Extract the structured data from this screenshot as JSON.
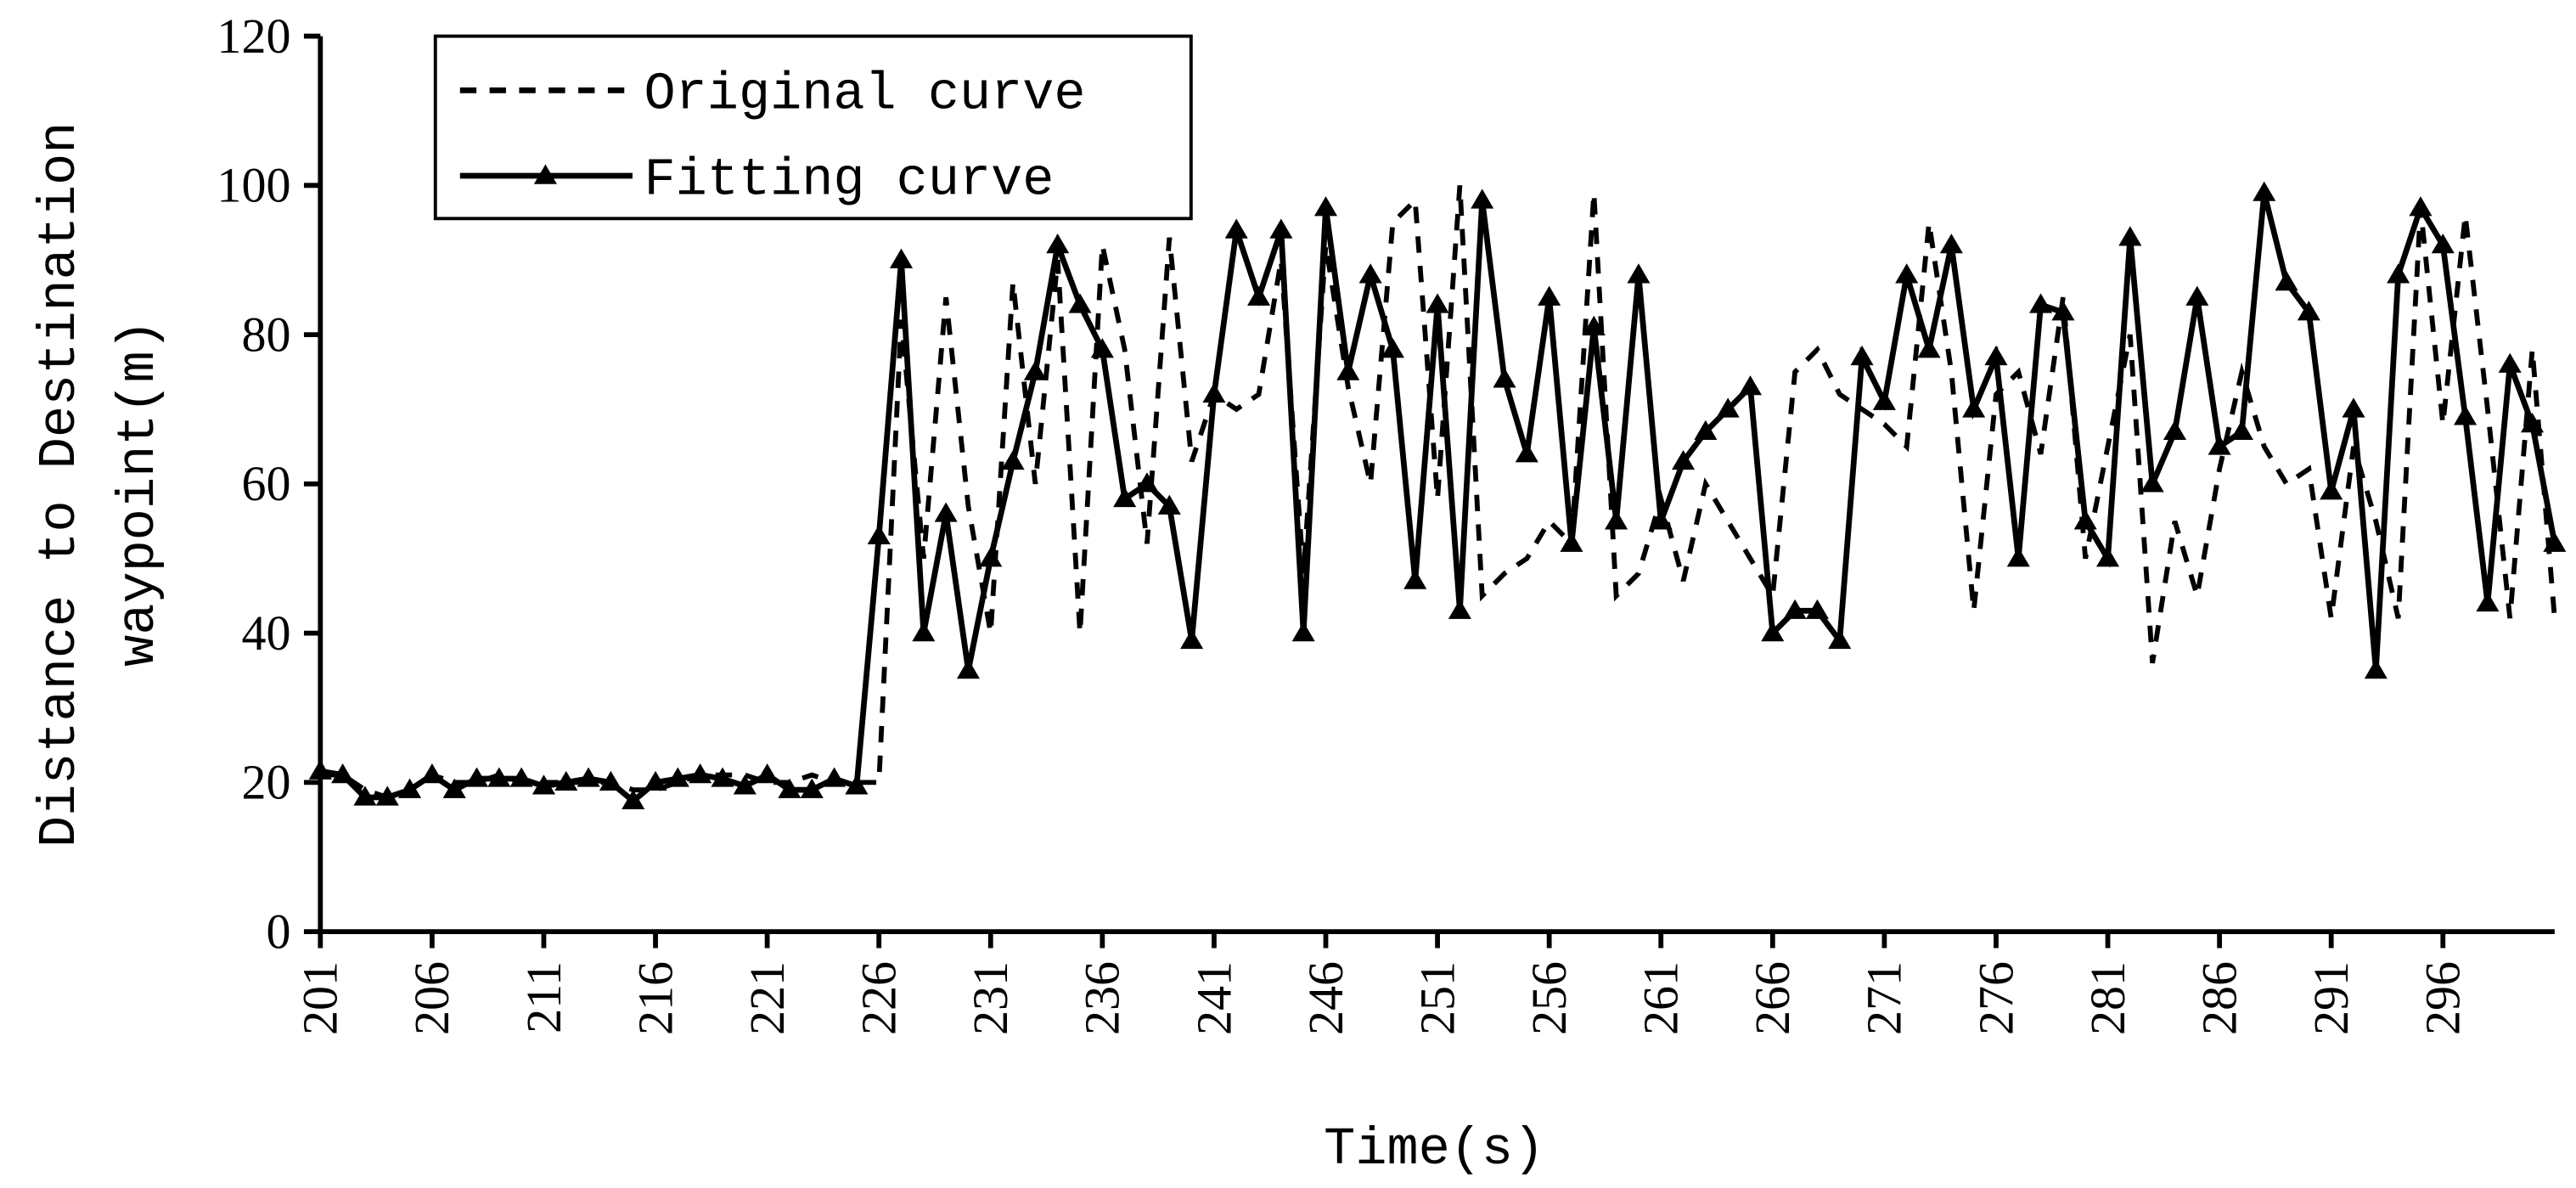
{
  "chart_data": {
    "type": "line",
    "xlabel": "Time(s)",
    "ylabel": [
      "Distance to Destination",
      "waypoint(m)"
    ],
    "x": [
      201,
      202,
      203,
      204,
      205,
      206,
      207,
      208,
      209,
      210,
      211,
      212,
      213,
      214,
      215,
      216,
      217,
      218,
      219,
      220,
      221,
      222,
      223,
      224,
      225,
      226,
      227,
      228,
      229,
      230,
      231,
      232,
      233,
      234,
      235,
      236,
      237,
      238,
      239,
      240,
      241,
      242,
      243,
      244,
      245,
      246,
      247,
      248,
      249,
      250,
      251,
      252,
      253,
      254,
      255,
      256,
      257,
      258,
      259,
      260,
      261,
      262,
      263,
      264,
      265,
      266,
      267,
      268,
      269,
      270,
      271,
      272,
      273,
      274,
      275,
      276,
      277,
      278,
      279,
      280,
      281,
      282,
      283,
      284,
      285,
      286,
      287,
      288,
      289,
      290,
      291,
      292,
      293,
      294,
      295,
      296,
      297,
      298,
      299,
      300,
      301
    ],
    "series": [
      {
        "name": "Original curve",
        "color": "#000000",
        "dash": true,
        "marker": false,
        "values": [
          21,
          21,
          19,
          18,
          19,
          21,
          20,
          20,
          21,
          20,
          20,
          20,
          20,
          20,
          19,
          19,
          20,
          21,
          21,
          21,
          20,
          20,
          21,
          20,
          20,
          20,
          82,
          50,
          85,
          57,
          40,
          87,
          60,
          90,
          40,
          92,
          78,
          52,
          93,
          63,
          72,
          70,
          72,
          90,
          48,
          92,
          73,
          60,
          95,
          98,
          58,
          100,
          45,
          48,
          50,
          55,
          52,
          99,
          45,
          48,
          58,
          47,
          60,
          55,
          50,
          45,
          75,
          78,
          72,
          70,
          68,
          65,
          95,
          75,
          43,
          72,
          75,
          64,
          85,
          50,
          65,
          80,
          36,
          55,
          45,
          62,
          75,
          65,
          60,
          62,
          42,
          65,
          55,
          42,
          97,
          68,
          96,
          70,
          42,
          78,
          42
        ]
      },
      {
        "name": "Fitting curve",
        "color": "#000000",
        "dash": false,
        "marker": true,
        "values": [
          21.5,
          21,
          18,
          18,
          19,
          21,
          19,
          20.5,
          20.5,
          20.5,
          19.5,
          20,
          20.5,
          20,
          17.5,
          20,
          20.5,
          21,
          20.5,
          19.5,
          21,
          19,
          19,
          20.5,
          19.5,
          53,
          90,
          40,
          56,
          35,
          50,
          63,
          75,
          92,
          84,
          78,
          58,
          60,
          57,
          39,
          72,
          94,
          85,
          94,
          40,
          97,
          75,
          88,
          78,
          47,
          84,
          43,
          98,
          74,
          64,
          85,
          52,
          81,
          55,
          88,
          55,
          63,
          67,
          70,
          73,
          40,
          43,
          43,
          39,
          77,
          71,
          88,
          78,
          92,
          70,
          77,
          50,
          84,
          83,
          55,
          50,
          93,
          60,
          67,
          85,
          65,
          67,
          99,
          87,
          83,
          59,
          70,
          35,
          88,
          97,
          92,
          69,
          44,
          76,
          68,
          52
        ]
      }
    ],
    "xlim": [
      201,
      301
    ],
    "xticks": [
      201,
      206,
      211,
      216,
      221,
      226,
      231,
      236,
      241,
      246,
      251,
      256,
      261,
      266,
      271,
      276,
      281,
      286,
      291,
      296
    ],
    "ylim": [
      0,
      120
    ],
    "yticks": [
      0,
      20,
      40,
      60,
      80,
      100,
      120
    ],
    "legend": "upper left"
  }
}
